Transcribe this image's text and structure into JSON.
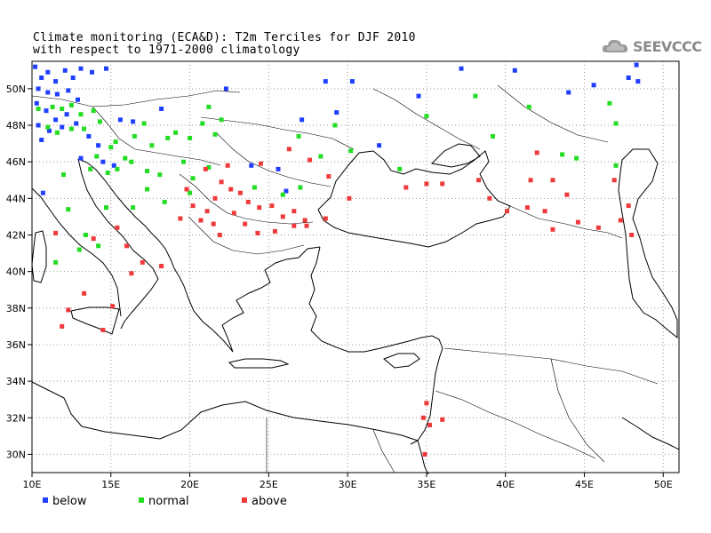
{
  "title_line1": "Climate monitoring (ECA&D): T2m Terciles for DJF 2010",
  "title_line2": "with respect to 1971-2000 climatology",
  "logo_text": "SEEVCCC",
  "map": {
    "lon_range": [
      10,
      51
    ],
    "lat_range": [
      29,
      51.5
    ],
    "lon_ticks": [
      "10E",
      "15E",
      "20E",
      "25E",
      "30E",
      "35E",
      "40E",
      "45E",
      "50E"
    ],
    "lat_ticks": [
      "30N",
      "32N",
      "34N",
      "36N",
      "38N",
      "40N",
      "42N",
      "44N",
      "46N",
      "48N",
      "50N"
    ],
    "grid": true
  },
  "legend": {
    "below": {
      "label": "below",
      "color": "#1f3fff"
    },
    "normal": {
      "label": "normal",
      "color": "#22dd22"
    },
    "above": {
      "label": "above",
      "color": "#ee3a3a"
    }
  },
  "stations": {
    "below": [
      [
        10.2,
        51.2
      ],
      [
        10.6,
        50.6
      ],
      [
        11.0,
        50.9
      ],
      [
        11.5,
        50.4
      ],
      [
        12.1,
        51.0
      ],
      [
        12.6,
        50.6
      ],
      [
        13.1,
        51.1
      ],
      [
        13.8,
        50.9
      ],
      [
        14.7,
        51.1
      ],
      [
        10.4,
        50.0
      ],
      [
        11.0,
        49.8
      ],
      [
        11.6,
        49.7
      ],
      [
        12.3,
        49.9
      ],
      [
        12.9,
        49.4
      ],
      [
        10.3,
        49.2
      ],
      [
        10.9,
        48.8
      ],
      [
        11.5,
        48.3
      ],
      [
        12.2,
        48.6
      ],
      [
        12.8,
        48.1
      ],
      [
        10.4,
        48.0
      ],
      [
        11.1,
        47.7
      ],
      [
        10.6,
        47.2
      ],
      [
        11.9,
        47.9
      ],
      [
        13.6,
        47.4
      ],
      [
        14.2,
        46.9
      ],
      [
        15.6,
        48.3
      ],
      [
        16.4,
        48.2
      ],
      [
        18.2,
        48.9
      ],
      [
        22.3,
        50.0
      ],
      [
        27.1,
        48.3
      ],
      [
        28.6,
        50.4
      ],
      [
        29.3,
        48.7
      ],
      [
        23.9,
        45.8
      ],
      [
        26.1,
        44.4
      ],
      [
        25.6,
        45.6
      ],
      [
        13.1,
        46.2
      ],
      [
        14.5,
        46.0
      ],
      [
        15.2,
        45.8
      ],
      [
        10.7,
        44.3
      ],
      [
        32.0,
        46.9
      ],
      [
        37.2,
        51.1
      ],
      [
        40.6,
        51.0
      ],
      [
        44.0,
        49.8
      ],
      [
        45.6,
        50.2
      ],
      [
        48.3,
        51.3
      ],
      [
        48.4,
        50.4
      ],
      [
        47.8,
        50.6
      ],
      [
        30.3,
        50.4
      ],
      [
        34.5,
        49.6
      ]
    ],
    "normal": [
      [
        10.4,
        48.9
      ],
      [
        11.3,
        49.0
      ],
      [
        11.9,
        48.9
      ],
      [
        12.5,
        49.1
      ],
      [
        13.1,
        48.6
      ],
      [
        13.9,
        48.8
      ],
      [
        11.0,
        47.9
      ],
      [
        11.6,
        47.6
      ],
      [
        12.5,
        47.8
      ],
      [
        13.3,
        47.8
      ],
      [
        14.3,
        48.2
      ],
      [
        15.3,
        47.1
      ],
      [
        15.9,
        46.2
      ],
      [
        16.5,
        47.4
      ],
      [
        17.1,
        48.1
      ],
      [
        17.6,
        46.9
      ],
      [
        18.6,
        47.3
      ],
      [
        19.1,
        47.6
      ],
      [
        20.0,
        47.3
      ],
      [
        21.6,
        47.5
      ],
      [
        20.8,
        48.1
      ],
      [
        21.2,
        49.0
      ],
      [
        22.0,
        48.3
      ],
      [
        15.0,
        46.8
      ],
      [
        14.1,
        46.3
      ],
      [
        14.8,
        45.4
      ],
      [
        15.4,
        45.6
      ],
      [
        16.3,
        46.0
      ],
      [
        17.3,
        45.5
      ],
      [
        18.1,
        45.3
      ],
      [
        19.6,
        46.0
      ],
      [
        20.2,
        45.1
      ],
      [
        21.2,
        45.7
      ],
      [
        20.0,
        44.3
      ],
      [
        12.0,
        45.3
      ],
      [
        13.7,
        45.6
      ],
      [
        12.3,
        43.4
      ],
      [
        14.2,
        41.4
      ],
      [
        14.7,
        43.5
      ],
      [
        13.4,
        42.0
      ],
      [
        16.4,
        43.5
      ],
      [
        17.3,
        44.5
      ],
      [
        18.4,
        43.8
      ],
      [
        24.1,
        44.6
      ],
      [
        25.9,
        44.2
      ],
      [
        27.0,
        44.6
      ],
      [
        28.3,
        46.3
      ],
      [
        30.2,
        46.6
      ],
      [
        33.3,
        45.6
      ],
      [
        26.9,
        47.4
      ],
      [
        29.2,
        48.0
      ],
      [
        35.0,
        48.5
      ],
      [
        38.1,
        49.6
      ],
      [
        39.2,
        47.4
      ],
      [
        41.5,
        49.0
      ],
      [
        44.5,
        46.2
      ],
      [
        43.6,
        46.4
      ],
      [
        47.0,
        48.1
      ],
      [
        46.6,
        49.2
      ],
      [
        47.0,
        45.8
      ],
      [
        13.0,
        41.2
      ],
      [
        11.5,
        40.5
      ]
    ],
    "above": [
      [
        22.0,
        44.9
      ],
      [
        21.6,
        44.0
      ],
      [
        22.6,
        44.5
      ],
      [
        23.2,
        44.3
      ],
      [
        23.7,
        43.8
      ],
      [
        24.4,
        43.5
      ],
      [
        25.2,
        43.6
      ],
      [
        25.9,
        43.0
      ],
      [
        26.6,
        43.3
      ],
      [
        27.4,
        42.5
      ],
      [
        28.6,
        42.9
      ],
      [
        22.8,
        43.2
      ],
      [
        23.5,
        42.6
      ],
      [
        24.3,
        42.1
      ],
      [
        25.4,
        42.2
      ],
      [
        26.6,
        42.5
      ],
      [
        27.3,
        42.8
      ],
      [
        21.1,
        43.3
      ],
      [
        21.5,
        42.6
      ],
      [
        21.9,
        42.0
      ],
      [
        20.7,
        42.8
      ],
      [
        20.2,
        43.6
      ],
      [
        19.8,
        44.5
      ],
      [
        21.0,
        45.6
      ],
      [
        22.4,
        45.8
      ],
      [
        24.5,
        45.9
      ],
      [
        26.3,
        46.7
      ],
      [
        27.6,
        46.1
      ],
      [
        28.8,
        45.2
      ],
      [
        30.1,
        44.0
      ],
      [
        33.7,
        44.6
      ],
      [
        35.0,
        44.8
      ],
      [
        36.0,
        44.8
      ],
      [
        38.3,
        45.0
      ],
      [
        39.0,
        44.0
      ],
      [
        40.1,
        43.3
      ],
      [
        41.4,
        43.5
      ],
      [
        42.5,
        43.3
      ],
      [
        43.0,
        42.3
      ],
      [
        43.9,
        44.2
      ],
      [
        41.6,
        45.0
      ],
      [
        43.0,
        45.0
      ],
      [
        42.0,
        46.5
      ],
      [
        44.6,
        42.7
      ],
      [
        45.9,
        42.4
      ],
      [
        47.3,
        42.8
      ],
      [
        47.8,
        43.6
      ],
      [
        46.9,
        45.0
      ],
      [
        48.0,
        42.0
      ],
      [
        16.0,
        41.4
      ],
      [
        17.0,
        40.5
      ],
      [
        18.2,
        40.3
      ],
      [
        15.1,
        38.1
      ],
      [
        13.3,
        38.8
      ],
      [
        12.3,
        37.9
      ],
      [
        11.9,
        37.0
      ],
      [
        14.5,
        36.8
      ],
      [
        35.0,
        32.8
      ],
      [
        34.8,
        32.0
      ],
      [
        35.2,
        31.6
      ],
      [
        34.9,
        30.0
      ],
      [
        36.0,
        31.9
      ],
      [
        11.5,
        42.1
      ],
      [
        13.9,
        41.8
      ],
      [
        15.4,
        42.4
      ],
      [
        19.4,
        42.9
      ],
      [
        16.3,
        39.9
      ]
    ]
  }
}
